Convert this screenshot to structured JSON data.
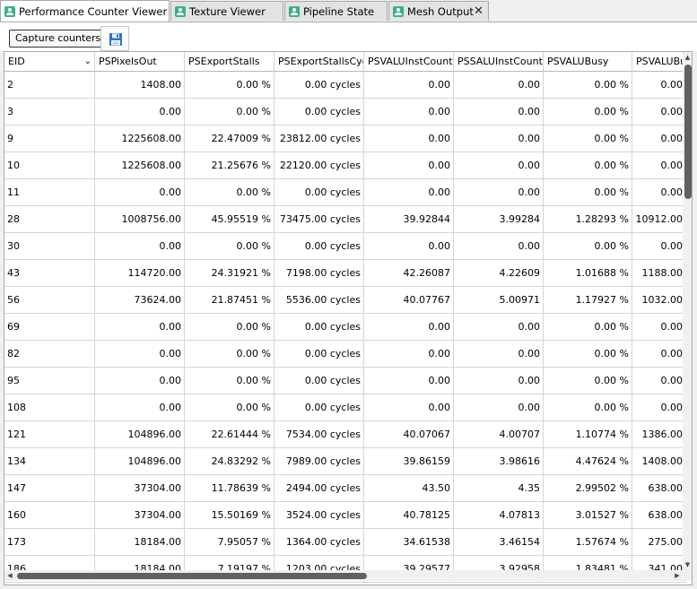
{
  "tabs": [
    {
      "label": "Performance Counter Viewer",
      "active": true
    },
    {
      "label": "Texture Viewer",
      "active": false
    },
    {
      "label": "Pipeline State",
      "active": false
    },
    {
      "label": "Mesh Output",
      "active": false
    }
  ],
  "toolbar": {
    "capture_label": "Capture counters",
    "save_icon": "floppy-disk-icon"
  },
  "table": {
    "columns": [
      "EID",
      "PSPixelsOut",
      "PSExportStalls",
      "PSExportStallsCycles",
      "PSVALUInstCount",
      "PSSALUInstCount",
      "PSVALUBusy",
      "PSVALUBusyCycles"
    ],
    "rows": [
      [
        "2",
        "1408.00",
        "0.00 %",
        "0.00 cycles",
        "0.00",
        "0.00",
        "0.00 %",
        "0.00"
      ],
      [
        "3",
        "0.00",
        "0.00 %",
        "0.00 cycles",
        "0.00",
        "0.00",
        "0.00 %",
        "0.00"
      ],
      [
        "9",
        "1225608.00",
        "22.47009 %",
        "23812.00 cycles",
        "0.00",
        "0.00",
        "0.00 %",
        "0.00"
      ],
      [
        "10",
        "1225608.00",
        "21.25676 %",
        "22120.00 cycles",
        "0.00",
        "0.00",
        "0.00 %",
        "0.00"
      ],
      [
        "11",
        "0.00",
        "0.00 %",
        "0.00 cycles",
        "0.00",
        "0.00",
        "0.00 %",
        "0.00"
      ],
      [
        "28",
        "1008756.00",
        "45.95519 %",
        "73475.00 cycles",
        "39.92844",
        "3.99284",
        "1.28293 %",
        "10912.00"
      ],
      [
        "30",
        "0.00",
        "0.00 %",
        "0.00 cycles",
        "0.00",
        "0.00",
        "0.00 %",
        "0.00"
      ],
      [
        "43",
        "114720.00",
        "24.31921 %",
        "7198.00 cycles",
        "42.26087",
        "4.22609",
        "1.01688 %",
        "1188.00"
      ],
      [
        "56",
        "73624.00",
        "21.87451 %",
        "5536.00 cycles",
        "40.07767",
        "5.00971",
        "1.17927 %",
        "1032.00"
      ],
      [
        "69",
        "0.00",
        "0.00 %",
        "0.00 cycles",
        "0.00",
        "0.00",
        "0.00 %",
        "0.00"
      ],
      [
        "82",
        "0.00",
        "0.00 %",
        "0.00 cycles",
        "0.00",
        "0.00",
        "0.00 %",
        "0.00"
      ],
      [
        "95",
        "0.00",
        "0.00 %",
        "0.00 cycles",
        "0.00",
        "0.00",
        "0.00 %",
        "0.00"
      ],
      [
        "108",
        "0.00",
        "0.00 %",
        "0.00 cycles",
        "0.00",
        "0.00",
        "0.00 %",
        "0.00"
      ],
      [
        "121",
        "104896.00",
        "22.61444 %",
        "7534.00 cycles",
        "40.07067",
        "4.00707",
        "1.10774 %",
        "1386.00"
      ],
      [
        "134",
        "104896.00",
        "24.83292 %",
        "7989.00 cycles",
        "39.86159",
        "3.98616",
        "4.47624 %",
        "1408.00"
      ],
      [
        "147",
        "37304.00",
        "11.78639 %",
        "2494.00 cycles",
        "43.50",
        "4.35",
        "2.99502 %",
        "638.00"
      ],
      [
        "160",
        "37304.00",
        "15.50169 %",
        "3524.00 cycles",
        "40.78125",
        "4.07813",
        "3.01527 %",
        "638.00"
      ],
      [
        "173",
        "18184.00",
        "7.95057 %",
        "1364.00 cycles",
        "34.61538",
        "3.46154",
        "1.57674 %",
        "275.00"
      ],
      [
        "186",
        "18184.00",
        "7.19197 %",
        "1203.00 cycles",
        "39.29577",
        "3.92958",
        "1.83481 %",
        "341.00"
      ]
    ]
  }
}
